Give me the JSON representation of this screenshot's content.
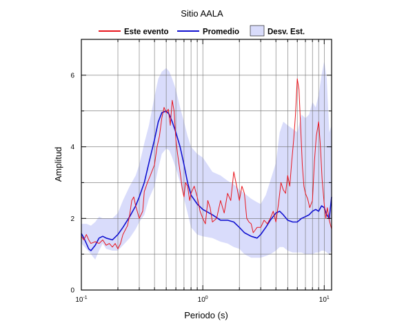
{
  "chart_data": {
    "type": "line",
    "title": "Sitio AALA",
    "xlabel": "Periodo (s)",
    "ylabel": "Amplitud",
    "x_scale": "log",
    "xlim": [
      0.1,
      11.5
    ],
    "ylim": [
      0,
      7
    ],
    "grid": true,
    "legend_position": "top",
    "x_ticks": [
      {
        "base": "10",
        "exp": "-1"
      },
      {
        "base": "10",
        "exp": "0"
      },
      {
        "base": "10",
        "exp": "1"
      }
    ],
    "y_ticks": [
      "0",
      "2",
      "4",
      "6"
    ],
    "colors": {
      "event": "#e8141c",
      "mean": "#1010d0",
      "band": "#d9dcfb"
    },
    "legend": {
      "event": "Este evento",
      "mean": "Promedio",
      "band": "Desv. Est."
    },
    "series": [
      {
        "name": "Promedio",
        "x": [
          0.1,
          0.105,
          0.11,
          0.115,
          0.12,
          0.13,
          0.14,
          0.15,
          0.16,
          0.18,
          0.2,
          0.22,
          0.25,
          0.28,
          0.3,
          0.33,
          0.36,
          0.4,
          0.43,
          0.46,
          0.5,
          0.53,
          0.56,
          0.6,
          0.65,
          0.7,
          0.75,
          0.8,
          0.9,
          1.0,
          1.2,
          1.4,
          1.6,
          1.8,
          2.0,
          2.2,
          2.5,
          2.8,
          3.0,
          3.3,
          3.6,
          4.0,
          4.3,
          4.6,
          5.0,
          5.5,
          6.0,
          6.5,
          7.0,
          7.5,
          8.0,
          8.5,
          9.0,
          9.5,
          10.0,
          10.5,
          11.0,
          11.5
        ],
        "values": [
          1.58,
          1.45,
          1.3,
          1.15,
          1.1,
          1.25,
          1.45,
          1.5,
          1.45,
          1.4,
          1.55,
          1.75,
          2.05,
          2.35,
          2.6,
          3.0,
          3.55,
          4.2,
          4.7,
          4.95,
          5.0,
          4.9,
          4.7,
          4.4,
          4.0,
          3.5,
          3.0,
          2.65,
          2.4,
          2.25,
          2.1,
          1.95,
          1.95,
          1.9,
          1.75,
          1.6,
          1.5,
          1.45,
          1.55,
          1.75,
          1.95,
          2.15,
          2.2,
          2.1,
          1.95,
          1.9,
          1.9,
          2.0,
          2.05,
          2.1,
          2.2,
          2.25,
          2.2,
          2.35,
          2.3,
          2.1,
          2.0,
          2.6
        ]
      },
      {
        "name": "Este evento",
        "x": [
          0.1,
          0.105,
          0.11,
          0.115,
          0.12,
          0.13,
          0.14,
          0.15,
          0.16,
          0.17,
          0.18,
          0.19,
          0.2,
          0.21,
          0.22,
          0.24,
          0.25,
          0.26,
          0.27,
          0.28,
          0.3,
          0.32,
          0.33,
          0.35,
          0.37,
          0.4,
          0.42,
          0.44,
          0.46,
          0.48,
          0.5,
          0.52,
          0.54,
          0.56,
          0.58,
          0.6,
          0.62,
          0.65,
          0.68,
          0.7,
          0.72,
          0.75,
          0.78,
          0.8,
          0.85,
          0.9,
          0.95,
          1.0,
          1.05,
          1.1,
          1.15,
          1.2,
          1.3,
          1.4,
          1.5,
          1.6,
          1.7,
          1.8,
          1.9,
          2.0,
          2.1,
          2.2,
          2.3,
          2.4,
          2.5,
          2.6,
          2.8,
          3.0,
          3.2,
          3.4,
          3.6,
          3.8,
          4.0,
          4.2,
          4.4,
          4.6,
          4.8,
          5.0,
          5.2,
          5.4,
          5.6,
          5.8,
          6.0,
          6.2,
          6.4,
          6.6,
          6.8,
          7.0,
          7.3,
          7.6,
          8.0,
          8.3,
          8.6,
          9.0,
          9.3,
          9.6,
          10.0,
          10.3,
          10.6,
          11.0,
          11.5
        ],
        "values": [
          1.5,
          1.4,
          1.55,
          1.4,
          1.3,
          1.35,
          1.3,
          1.4,
          1.25,
          1.3,
          1.2,
          1.3,
          1.15,
          1.3,
          1.55,
          1.8,
          2.1,
          2.5,
          2.6,
          2.35,
          2.0,
          2.2,
          2.75,
          3.0,
          3.2,
          3.5,
          4.0,
          4.3,
          4.8,
          5.1,
          4.95,
          5.05,
          4.6,
          5.3,
          5.0,
          4.2,
          3.8,
          3.3,
          2.8,
          2.6,
          3.0,
          2.9,
          2.5,
          2.7,
          2.9,
          2.6,
          2.2,
          2.0,
          1.85,
          2.5,
          2.3,
          1.9,
          2.0,
          2.5,
          2.15,
          2.7,
          2.5,
          3.3,
          2.9,
          2.5,
          2.9,
          2.7,
          2.0,
          1.9,
          1.85,
          1.6,
          1.75,
          1.75,
          1.95,
          1.85,
          2.0,
          2.2,
          1.9,
          2.4,
          3.0,
          2.8,
          2.7,
          3.2,
          2.9,
          3.6,
          4.2,
          4.9,
          5.9,
          5.6,
          4.5,
          3.5,
          2.9,
          2.7,
          2.55,
          2.3,
          2.5,
          3.6,
          4.3,
          4.7,
          4.0,
          3.1,
          2.4,
          2.0,
          2.3,
          1.95,
          1.7
        ]
      }
    ],
    "band": {
      "name": "Desv. Est.",
      "x": [
        0.1,
        0.11,
        0.12,
        0.13,
        0.14,
        0.15,
        0.16,
        0.18,
        0.2,
        0.22,
        0.25,
        0.28,
        0.3,
        0.33,
        0.36,
        0.4,
        0.43,
        0.46,
        0.5,
        0.53,
        0.56,
        0.6,
        0.65,
        0.7,
        0.75,
        0.8,
        0.9,
        1.0,
        1.2,
        1.4,
        1.6,
        1.8,
        2.0,
        2.2,
        2.5,
        2.8,
        3.0,
        3.3,
        3.6,
        4.0,
        4.3,
        4.6,
        5.0,
        5.5,
        6.0,
        6.5,
        7.0,
        7.5,
        8.0,
        8.5,
        9.0,
        9.5,
        10.0,
        10.5,
        11.0,
        11.5
      ],
      "upper": [
        1.85,
        1.85,
        1.8,
        1.9,
        2.05,
        2.0,
        2.0,
        2.0,
        2.15,
        2.5,
        2.9,
        3.2,
        3.5,
        4.1,
        4.6,
        5.4,
        5.9,
        6.1,
        6.2,
        6.1,
        5.9,
        5.6,
        5.1,
        4.7,
        4.3,
        4.0,
        3.8,
        3.7,
        3.3,
        3.2,
        3.05,
        2.95,
        2.8,
        2.7,
        2.55,
        2.45,
        2.4,
        2.65,
        3.05,
        3.55,
        4.4,
        4.7,
        4.6,
        4.5,
        4.4,
        4.9,
        4.8,
        4.9,
        5.25,
        5.1,
        5.45,
        6.0,
        6.4,
        5.9,
        4.4,
        4.6
      ],
      "lower": [
        1.3,
        1.15,
        1.0,
        0.85,
        1.1,
        1.3,
        1.15,
        1.1,
        1.1,
        1.25,
        1.45,
        1.7,
        1.9,
        2.1,
        2.55,
        2.9,
        3.4,
        3.8,
        3.95,
        3.9,
        3.7,
        3.4,
        3.0,
        2.55,
        2.15,
        1.75,
        1.55,
        1.5,
        1.45,
        1.35,
        1.3,
        1.2,
        1.15,
        1.0,
        0.9,
        0.9,
        0.9,
        0.95,
        1.0,
        1.1,
        1.2,
        1.2,
        1.1,
        1.05,
        1.05,
        1.05,
        1.0,
        1.0,
        1.0,
        1.05,
        1.05,
        1.1,
        1.1,
        1.05,
        1.0,
        1.1
      ]
    }
  }
}
